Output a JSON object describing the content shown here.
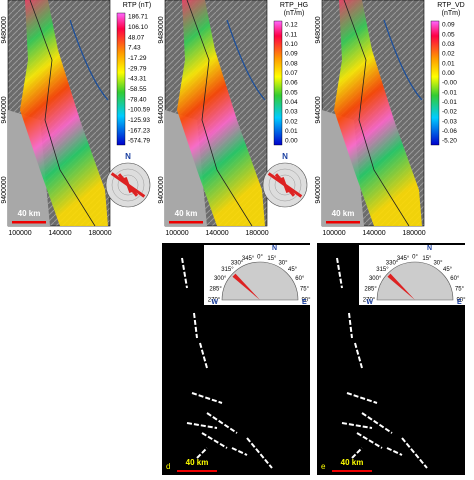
{
  "top_panels": [
    {
      "colorbar_title": [
        "RTP (nT)"
      ],
      "colorbar_labels": [
        "186.71",
        "106.10",
        "48.07",
        "7.43",
        "-17.29",
        "-29.79",
        "-43.31",
        "-58.55",
        "-78.40",
        "-100.59",
        "-125.93",
        "-167.23",
        "-574.79"
      ],
      "x_labels": [
        "100000",
        "140000",
        "180000"
      ],
      "y_labels": [
        "9480000",
        "9440000",
        "9400000"
      ],
      "scale": "40 km",
      "north": "N"
    },
    {
      "colorbar_title": [
        "RTP_HG",
        "(nT/m)"
      ],
      "colorbar_labels": [
        "0.12",
        "0.11",
        "0.10",
        "0.09",
        "0.08",
        "0.07",
        "0.06",
        "0.05",
        "0.04",
        "0.03",
        "0.02",
        "0.01",
        "0.00"
      ],
      "x_labels": [
        "100000",
        "140000",
        "180000"
      ],
      "y_labels": [
        "9480000",
        "9440000",
        "9400000"
      ],
      "scale": "40 km",
      "north": "N"
    },
    {
      "colorbar_title": [
        "RTP_VD",
        "(nTm)"
      ],
      "colorbar_labels": [
        "0.09",
        "0.05",
        "0.03",
        "0.02",
        "0.01",
        "0.00",
        "-0.00",
        "-0.01",
        "-0.01",
        "-0.02",
        "-0.03",
        "-0.06",
        "-5.20"
      ],
      "x_labels": [
        "100000",
        "140000",
        "180000"
      ],
      "y_labels": [
        "9480000",
        "9440000",
        "9400000"
      ],
      "scale": "40 km"
    }
  ],
  "bottom_panels": [
    {
      "label": "d",
      "scale": "40 km",
      "rose": {
        "north": "N",
        "west": "W",
        "east": "E",
        "angles": [
          "270°",
          "285°",
          "300°",
          "315°",
          "330°",
          "345°",
          "0°",
          "15°",
          "30°",
          "45°",
          "60°",
          "75°",
          "90°"
        ]
      }
    },
    {
      "label": "e",
      "scale": "40 km",
      "rose": {
        "north": "N",
        "west": "W",
        "east": "E",
        "angles": [
          "270°",
          "285°",
          "300°",
          "315°",
          "330°",
          "345°",
          "0°",
          "15°",
          "30°",
          "45°",
          "60°",
          "75°",
          "90°"
        ]
      }
    }
  ]
}
